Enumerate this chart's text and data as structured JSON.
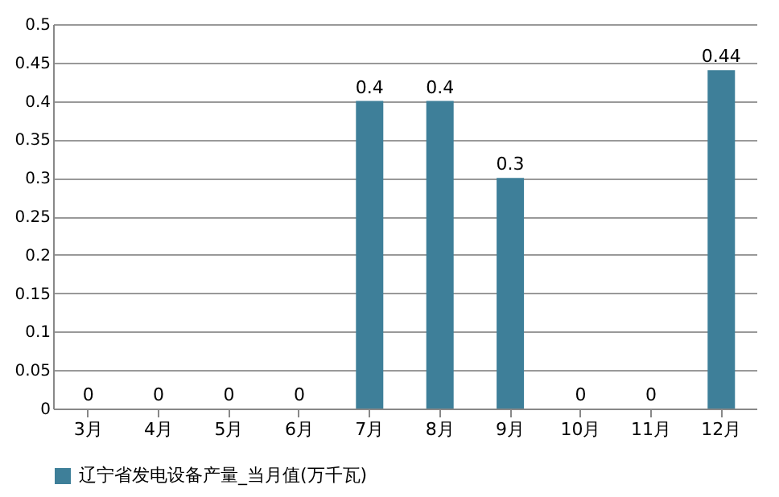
{
  "chart_data": {
    "type": "bar",
    "categories": [
      "3月",
      "4月",
      "5月",
      "6月",
      "7月",
      "8月",
      "9月",
      "10月",
      "11月",
      "12月"
    ],
    "series": [
      {
        "name": "辽宁省发电设备产量_当月值(万千瓦)",
        "color": "#3e7f99",
        "values": [
          0,
          0,
          0,
          0,
          0.4,
          0.4,
          0.3,
          0,
          0,
          0.44
        ]
      }
    ],
    "ylim": [
      0,
      0.5
    ],
    "yticks": [
      0,
      0.05,
      0.1,
      0.15,
      0.2,
      0.25,
      0.3,
      0.35,
      0.4,
      0.45,
      0.5
    ],
    "grid": "y",
    "legend": "bottom",
    "data_labels": true
  }
}
